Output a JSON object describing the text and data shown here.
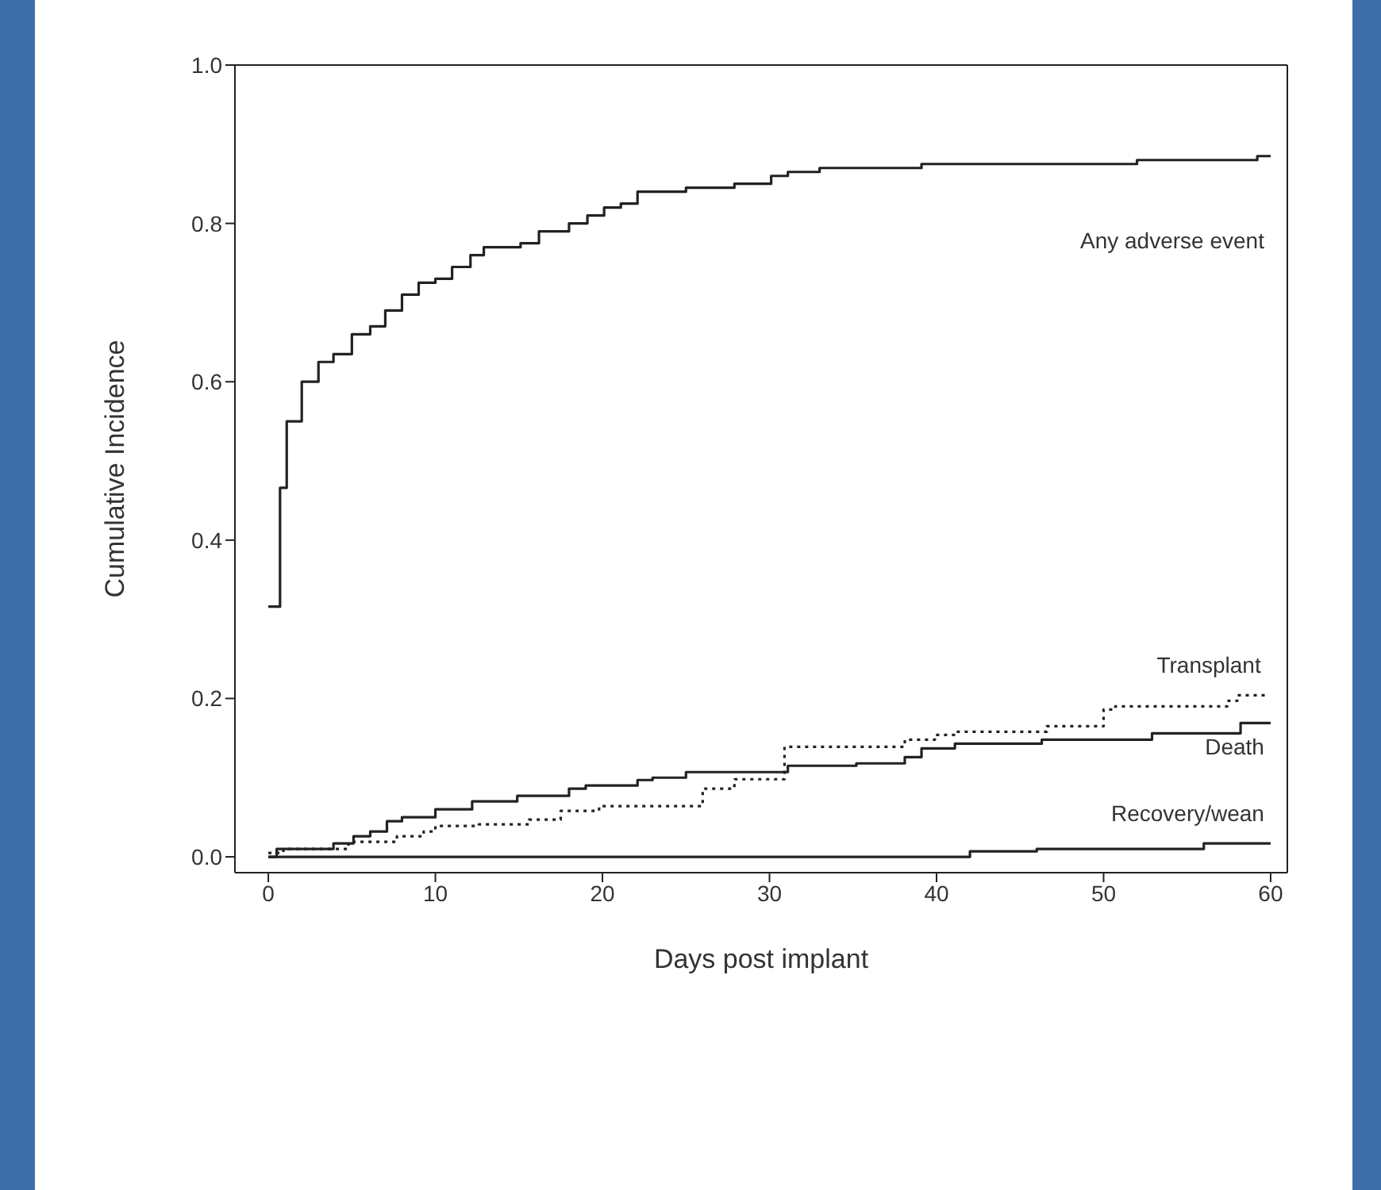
{
  "chart_data": {
    "type": "step",
    "xlabel": "Days post implant",
    "ylabel": "Cumulative Incidence",
    "xlim": [
      -2,
      61
    ],
    "ylim": [
      -0.02,
      1.0
    ],
    "xticks": [
      0,
      10,
      20,
      30,
      40,
      50,
      60
    ],
    "yticks": [
      {
        "value": 0,
        "label": "0.0"
      },
      {
        "value": 0.2,
        "label": "0.2"
      },
      {
        "value": 0.4,
        "label": "0.4"
      },
      {
        "value": 0.6,
        "label": "0.6"
      },
      {
        "value": 0.8,
        "label": "0.8"
      },
      {
        "value": 1.0,
        "label": "1.0"
      }
    ],
    "legend": false,
    "marker": "none",
    "series": [
      {
        "name": "Any adverse event",
        "color": "#222222",
        "line_style": "solid",
        "x": [
          0,
          0.7,
          1.1,
          2,
          3,
          3.9,
          5,
          6.1,
          7,
          8,
          9,
          10,
          11,
          12.1,
          12.9,
          13.9,
          15.1,
          16.2,
          18,
          19.1,
          20.1,
          21.1,
          22.1,
          25,
          27.9,
          30.1,
          31.1,
          33,
          39.1,
          52,
          59.2,
          60
        ],
        "values": [
          0.316,
          0.466,
          0.55,
          0.6,
          0.625,
          0.635,
          0.66,
          0.67,
          0.69,
          0.71,
          0.725,
          0.73,
          0.745,
          0.76,
          0.77,
          0.77,
          0.775,
          0.79,
          0.8,
          0.81,
          0.82,
          0.825,
          0.84,
          0.845,
          0.85,
          0.86,
          0.865,
          0.87,
          0.875,
          0.88,
          0.885,
          0.885
        ]
      },
      {
        "name": "Transplant",
        "color": "#222222",
        "line_style": "dotted",
        "x": [
          0,
          0.9,
          4.8,
          7.7,
          9.3,
          10,
          12.6,
          15.6,
          17.5,
          19.8,
          26,
          27.9,
          30.9,
          38.1,
          39.9,
          41.2,
          46.6,
          50,
          50.7,
          57.4,
          58,
          59.8
        ],
        "values": [
          0.005,
          0.01,
          0.019,
          0.026,
          0.032,
          0.039,
          0.041,
          0.047,
          0.058,
          0.064,
          0.086,
          0.098,
          0.139,
          0.148,
          0.154,
          0.158,
          0.165,
          0.186,
          0.19,
          0.197,
          0.204,
          0.204
        ]
      },
      {
        "name": "Death",
        "color": "#222222",
        "line_style": "solid",
        "x": [
          0,
          0.5,
          3.9,
          5.1,
          6.1,
          7.1,
          8,
          10,
          12.2,
          14.9,
          18,
          19,
          22.1,
          23,
          25,
          31.1,
          35.2,
          38.1,
          39.1,
          41.1,
          46.3,
          52.9,
          58.2,
          60
        ],
        "values": [
          0,
          0.01,
          0.017,
          0.026,
          0.032,
          0.045,
          0.05,
          0.06,
          0.07,
          0.077,
          0.086,
          0.09,
          0.097,
          0.1,
          0.107,
          0.115,
          0.118,
          0.126,
          0.137,
          0.143,
          0.148,
          0.156,
          0.169,
          0.169
        ]
      },
      {
        "name": "Recovery/wean",
        "color": "#222222",
        "line_style": "solid",
        "x": [
          0,
          42,
          46,
          56,
          60
        ],
        "values": [
          0,
          0.007,
          0.01,
          0.017,
          0.017
        ]
      }
    ]
  }
}
